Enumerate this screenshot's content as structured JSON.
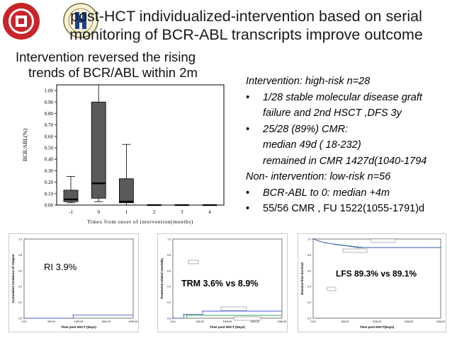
{
  "slide": {
    "title": "post-HCT individualized-intervention based on serial monitoring of BCR-ABL transcripts improve outcome",
    "subtitle_line1": "Intervention reversed the rising",
    "subtitle_line2": "trends of BCR/ABL within 2m",
    "logos": {
      "left": "peking-university-seal",
      "right": "hematology-institute-logo"
    }
  },
  "details": {
    "line1": "Intervention: high-risk n=28",
    "bullet1": "1/28 stable molecular disease  graft",
    "bullet1_cont": "failure and 2nd HSCT ,DFS 3y",
    "bullet2": "25/28 (89%) CMR:",
    "bullet2_sub1": "median 49d ( 18-232)",
    "bullet2_sub2": "remained in CMR 1427d(1040-1794",
    "line2": "Non- intervention: low-risk n=56",
    "bullet3": "BCR-ABL to 0: median +4m",
    "bullet4": "55/56 CMR , FU 1522(1055-1791)d",
    "bullet_symbol": "•"
  },
  "boxplot": {
    "ylabel": "BCR/ABL(%)",
    "xlabel": "Times from onset of intervention(months)"
  },
  "chart_data": [
    {
      "type": "box",
      "ylabel": "BCR/ABL(%)",
      "xlabel": "Times from onset of intervention(months)",
      "ylim": [
        0,
        1.05
      ],
      "yticks": [
        "0.00",
        "0.10",
        "0.20",
        "0.30",
        "0.40",
        "0.50",
        "0.60",
        "0.70",
        "0.80",
        "0.90",
        "1.00"
      ],
      "categories": [
        "-1",
        "0",
        "1",
        "2",
        "3",
        "4"
      ],
      "boxes": [
        {
          "x": "-1",
          "min": 0.02,
          "q1": 0.03,
          "median": 0.05,
          "q3": 0.13,
          "max": 0.25
        },
        {
          "x": "0",
          "min": 0.03,
          "q1": 0.06,
          "median": 0.19,
          "q3": 0.9,
          "max": 1.05
        },
        {
          "x": "1",
          "min": 0.0,
          "q1": 0.02,
          "median": 0.03,
          "q3": 0.23,
          "max": 0.53
        },
        {
          "x": "2",
          "min": 0.0,
          "q1": 0.0,
          "median": 0.0,
          "q3": 0.0,
          "max": 0.0
        },
        {
          "x": "3",
          "min": 0.0,
          "q1": 0.0,
          "median": 0.0,
          "q3": 0.0,
          "max": 0.0
        },
        {
          "x": "4",
          "min": 0.0,
          "q1": 0.0,
          "median": 0.0,
          "q3": 0.0,
          "max": 0.0
        }
      ],
      "colors": {
        "box": "#5a5a5a",
        "median": "#000000"
      }
    },
    {
      "type": "line",
      "label": "RI  3.9%",
      "ylabel": "Cumulative Incidence of relapse",
      "xlabel": "Time post HSCT (Days)",
      "yticks": [
        "0.0",
        "0.2",
        "0.4",
        "0.6",
        "0.8",
        "1.0"
      ],
      "xticks": [
        "0.00",
        "500.00",
        "1000.00",
        "1500.00",
        "2000.00"
      ],
      "ylim": [
        0,
        1
      ],
      "xlim": [
        0,
        2000
      ],
      "series": [
        {
          "values": [
            [
              0,
              0.0
            ],
            [
              900,
              0.0
            ],
            [
              900,
              0.039
            ],
            [
              2000,
              0.039
            ]
          ],
          "color": "#4a5fd0"
        }
      ]
    },
    {
      "type": "line",
      "label": "TRM 3.6% vs 8.9%",
      "ylabel": "Treatment-related mortality",
      "xlabel": "Time post HSCT (Days)",
      "yticks": [
        "0.0",
        "0.2",
        "0.4",
        "0.6",
        "0.8",
        "1.0"
      ],
      "xticks": [
        "0.00",
        "500.00",
        "1000.00",
        "1500.00",
        "2000.00"
      ],
      "ylim": [
        0,
        1
      ],
      "xlim": [
        0,
        2000
      ],
      "series": [
        {
          "values": [
            [
              0,
              0.0
            ],
            [
              250,
              0.0
            ],
            [
              250,
              0.036
            ],
            [
              2000,
              0.036
            ]
          ],
          "color": "#3aa35a"
        },
        {
          "values": [
            [
              0,
              0.0
            ],
            [
              200,
              0.0
            ],
            [
              200,
              0.05
            ],
            [
              550,
              0.05
            ],
            [
              550,
              0.089
            ],
            [
              2000,
              0.089
            ]
          ],
          "color": "#4a5fd0"
        }
      ]
    },
    {
      "type": "line",
      "label": "LFS 89.3% vs 89.1%",
      "ylabel": "Disease-free Survival",
      "xlabel": "Time post HSCT(Days)",
      "yticks": [
        "0.0",
        "0.2",
        "0.4",
        "0.6",
        "0.8",
        "1.0"
      ],
      "xticks": [
        "0.00",
        "500.00",
        "1000.00",
        "1500.00",
        "2000.00"
      ],
      "ylim": [
        0,
        1
      ],
      "xlim": [
        0,
        2000
      ],
      "series": [
        {
          "values": [
            [
              0,
              1.0
            ],
            [
              100,
              0.97
            ],
            [
              200,
              0.95
            ],
            [
              400,
              0.93
            ],
            [
              600,
              0.91
            ],
            [
              800,
              0.893
            ],
            [
              2000,
              0.893
            ]
          ],
          "color": "#3aa35a"
        },
        {
          "values": [
            [
              0,
              1.0
            ],
            [
              150,
              0.96
            ],
            [
              350,
              0.93
            ],
            [
              550,
              0.91
            ],
            [
              700,
              0.891
            ],
            [
              2000,
              0.891
            ]
          ],
          "color": "#4a5fd0"
        }
      ]
    }
  ]
}
